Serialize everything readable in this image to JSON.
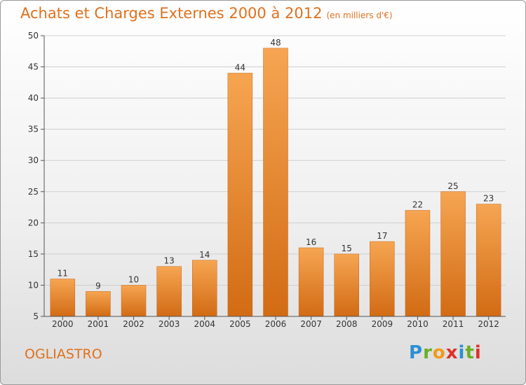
{
  "header": {
    "title": "Achats et Charges Externes 2000 à 2012",
    "subtitle": "(en milliers d'€)"
  },
  "region_label": "OGLIASTRO",
  "logo": {
    "letters": [
      "P",
      "r",
      "o",
      "x",
      "i",
      "t",
      "i"
    ],
    "colors": [
      "#2a8fd4",
      "#6ab023",
      "#f29a1a",
      "#e0302a",
      "#2a8fd4",
      "#6ab023",
      "#e0302a"
    ]
  },
  "chart_data": {
    "type": "bar",
    "categories": [
      "2000",
      "2001",
      "2002",
      "2003",
      "2004",
      "2005",
      "2006",
      "2007",
      "2008",
      "2009",
      "2010",
      "2011",
      "2012"
    ],
    "values": [
      11,
      9,
      10,
      13,
      14,
      44,
      48,
      16,
      15,
      17,
      22,
      25,
      23
    ],
    "data_labels": [
      "11",
      "9",
      "10",
      "13",
      "14",
      "44",
      "48",
      "16",
      "15",
      "17",
      "22",
      "25",
      "23"
    ],
    "y_ticks": [
      "5",
      "10",
      "15",
      "20",
      "25",
      "30",
      "35",
      "40",
      "45",
      "50"
    ],
    "ylim": [
      5,
      50
    ],
    "grid": true,
    "bar_color": "#f08a2c"
  }
}
